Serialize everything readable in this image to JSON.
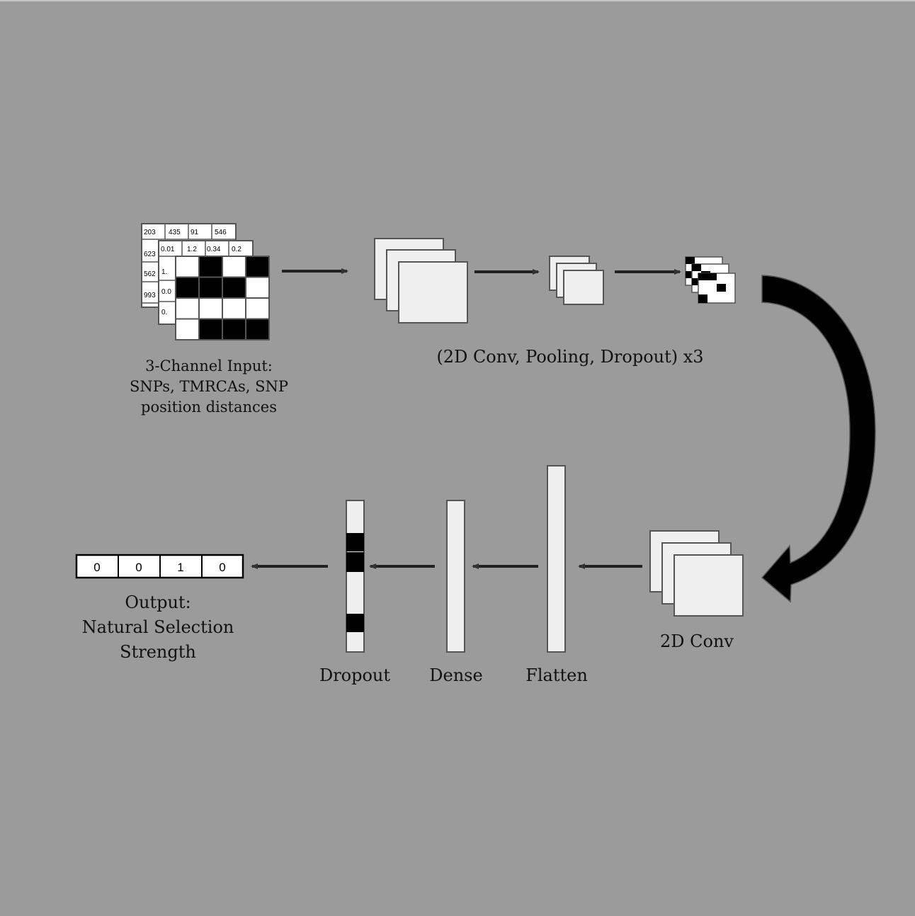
{
  "colors": {
    "background": "#9b9b9b",
    "box_fill": "#efefef",
    "box_stroke": "#555555",
    "black": "#000000",
    "white": "#ffffff"
  },
  "input": {
    "channel1_values": [
      "203",
      "435",
      "91",
      "546",
      "623",
      "562",
      "993"
    ],
    "channel2_values": [
      "0.01",
      "1.2",
      "0.34",
      "0.2",
      "1.",
      "0.0",
      "0."
    ],
    "channel3_grid": [
      [
        0,
        1,
        0,
        1
      ],
      [
        1,
        1,
        1,
        0
      ],
      [
        0,
        0,
        0,
        0
      ],
      [
        0,
        1,
        1,
        1
      ]
    ],
    "caption": [
      "3-Channel Input:",
      "SNPs, TMRCAs, SNP",
      "position distances"
    ]
  },
  "conv_block": {
    "caption": "(2D Conv, Pooling, Dropout) x3"
  },
  "conv2d": {
    "caption": "2D Conv"
  },
  "flatten": {
    "caption": "Flatten"
  },
  "dense": {
    "caption": "Dense"
  },
  "dropout": {
    "caption": "Dropout"
  },
  "output": {
    "values": [
      "0",
      "0",
      "1",
      "0"
    ],
    "caption": [
      "Output:",
      "Natural Selection",
      "Strength"
    ]
  }
}
